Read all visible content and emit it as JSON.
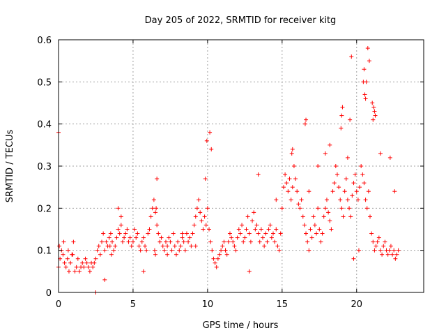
{
  "chart_data": {
    "type": "scatter",
    "title": "Day 205 of 2022, SRMTID for receiver kitg",
    "xlabel": "GPS time / hours",
    "ylabel": "SRMTID / TECUs",
    "xlim": [
      0,
      24.5
    ],
    "ylim": [
      0,
      0.6
    ],
    "xticks": [
      0,
      5,
      10,
      15,
      20
    ],
    "xtick_labels": [
      "0",
      "5",
      "10",
      "15",
      "20"
    ],
    "yticks": [
      0,
      0.1,
      0.2,
      0.3,
      0.4,
      0.5,
      0.6
    ],
    "ytick_labels": [
      "0",
      "0.1",
      "0.2",
      "0.3",
      "0.4",
      "0.5",
      "0.6"
    ],
    "grid": true,
    "marker": "+",
    "marker_color": "#ff0000",
    "series": [
      {
        "name": "SRMTID",
        "x": [
          0.0,
          0.1,
          0.2,
          0.3,
          0.4,
          0.5,
          0.6,
          0.7,
          0.8,
          0.9,
          1.0,
          1.1,
          1.2,
          1.3,
          1.4,
          1.5,
          1.6,
          1.7,
          1.8,
          1.9,
          2.0,
          2.1,
          2.2,
          2.3,
          2.4,
          2.5,
          2.6,
          2.7,
          2.8,
          2.9,
          3.0,
          3.1,
          3.2,
          3.3,
          3.4,
          3.5,
          3.6,
          3.7,
          3.8,
          3.9,
          4.0,
          4.1,
          4.2,
          4.3,
          4.4,
          4.5,
          4.6,
          4.7,
          4.8,
          4.9,
          5.0,
          5.1,
          5.2,
          5.3,
          5.4,
          5.5,
          5.6,
          5.7,
          5.8,
          5.9,
          6.0,
          6.1,
          6.2,
          6.3,
          6.4,
          6.5,
          6.6,
          6.7,
          6.8,
          6.9,
          7.0,
          7.1,
          7.2,
          7.3,
          7.4,
          7.5,
          7.6,
          7.7,
          7.8,
          7.9,
          8.0,
          8.1,
          8.2,
          8.3,
          8.4,
          8.5,
          8.6,
          8.7,
          8.8,
          8.9,
          9.0,
          9.1,
          9.2,
          9.3,
          9.4,
          9.5,
          9.6,
          9.7,
          9.8,
          9.9,
          10.0,
          10.1,
          10.2,
          10.3,
          10.4,
          10.5,
          10.6,
          10.7,
          10.8,
          10.9,
          11.0,
          11.1,
          11.2,
          11.3,
          11.4,
          11.5,
          11.6,
          11.7,
          11.8,
          11.9,
          12.0,
          12.1,
          12.2,
          12.3,
          12.4,
          12.5,
          12.6,
          12.7,
          12.8,
          12.9,
          13.0,
          13.1,
          13.2,
          13.3,
          13.4,
          13.5,
          13.6,
          13.7,
          13.8,
          13.9,
          14.0,
          14.1,
          14.2,
          14.3,
          14.4,
          14.5,
          14.6,
          14.7,
          14.8,
          14.9,
          15.0,
          15.1,
          15.2,
          15.3,
          15.4,
          15.5,
          15.6,
          15.7,
          15.8,
          15.9,
          16.0,
          16.1,
          16.2,
          16.3,
          16.4,
          16.5,
          16.6,
          16.7,
          16.8,
          16.9,
          17.0,
          17.1,
          17.2,
          17.3,
          17.4,
          17.5,
          17.6,
          17.7,
          17.8,
          17.9,
          18.0,
          18.1,
          18.2,
          18.3,
          18.4,
          18.5,
          18.6,
          18.7,
          18.8,
          18.9,
          19.0,
          19.1,
          19.2,
          19.3,
          19.4,
          19.5,
          19.6,
          19.7,
          19.8,
          19.9,
          20.0,
          20.1,
          20.2,
          20.3,
          20.4,
          20.5,
          20.6,
          20.7,
          20.8,
          20.9,
          21.0,
          21.1,
          21.2,
          21.3,
          21.4,
          21.5,
          21.6,
          21.7,
          21.8,
          21.9,
          22.0,
          22.1,
          22.2,
          22.3,
          22.4,
          22.5,
          22.6,
          22.7,
          22.8,
          0.05,
          0.35,
          0.65,
          0.95,
          3.45,
          3.55,
          6.45,
          6.5,
          6.55,
          6.6,
          9.85,
          9.95,
          10.15,
          10.25,
          15.65,
          15.7,
          16.55,
          16.6,
          18.95,
          19.0,
          19.05,
          19.55,
          19.65,
          20.45,
          20.5,
          20.55,
          20.6,
          20.65,
          20.75,
          20.85,
          21.05,
          21.1,
          21.15,
          21.2,
          21.25,
          0.0,
          2.5,
          3.1,
          4.0,
          4.2,
          5.7,
          6.8,
          7.3,
          8.3,
          9.2,
          11.2,
          12.8,
          13.4,
          14.6,
          16.8,
          17.4,
          17.9,
          18.2,
          19.4,
          19.8,
          20.15,
          21.6,
          22.25,
          22.55
        ],
        "y": [
          0.06,
          0.08,
          0.1,
          0.09,
          0.07,
          0.06,
          0.08,
          0.05,
          0.07,
          0.09,
          0.12,
          0.05,
          0.06,
          0.08,
          0.05,
          0.06,
          0.07,
          0.06,
          0.08,
          0.07,
          0.06,
          0.05,
          0.07,
          0.06,
          0.07,
          0.08,
          0.1,
          0.11,
          0.09,
          0.12,
          0.14,
          0.1,
          0.12,
          0.11,
          0.13,
          0.14,
          0.12,
          0.1,
          0.11,
          0.13,
          0.15,
          0.14,
          0.16,
          0.12,
          0.13,
          0.14,
          0.15,
          0.12,
          0.13,
          0.11,
          0.12,
          0.15,
          0.13,
          0.14,
          0.11,
          0.1,
          0.12,
          0.13,
          0.11,
          0.1,
          0.14,
          0.15,
          0.18,
          0.2,
          0.22,
          0.19,
          0.16,
          0.14,
          0.12,
          0.13,
          0.11,
          0.1,
          0.12,
          0.11,
          0.13,
          0.12,
          0.1,
          0.14,
          0.11,
          0.09,
          0.12,
          0.1,
          0.11,
          0.13,
          0.12,
          0.1,
          0.14,
          0.12,
          0.13,
          0.11,
          0.14,
          0.16,
          0.18,
          0.2,
          0.22,
          0.19,
          0.17,
          0.15,
          0.18,
          0.16,
          0.2,
          0.15,
          0.12,
          0.1,
          0.08,
          0.07,
          0.06,
          0.08,
          0.09,
          0.1,
          0.11,
          0.12,
          0.1,
          0.09,
          0.12,
          0.14,
          0.13,
          0.12,
          0.11,
          0.1,
          0.13,
          0.15,
          0.14,
          0.16,
          0.12,
          0.13,
          0.15,
          0.18,
          0.14,
          0.12,
          0.17,
          0.19,
          0.15,
          0.16,
          0.14,
          0.12,
          0.15,
          0.13,
          0.11,
          0.14,
          0.12,
          0.15,
          0.16,
          0.13,
          0.14,
          0.12,
          0.15,
          0.11,
          0.1,
          0.14,
          0.2,
          0.25,
          0.28,
          0.26,
          0.24,
          0.27,
          0.22,
          0.25,
          0.3,
          0.27,
          0.24,
          0.21,
          0.2,
          0.22,
          0.18,
          0.16,
          0.14,
          0.12,
          0.1,
          0.15,
          0.13,
          0.18,
          0.16,
          0.14,
          0.2,
          0.15,
          0.12,
          0.14,
          0.18,
          0.2,
          0.22,
          0.19,
          0.17,
          0.15,
          0.24,
          0.26,
          0.3,
          0.28,
          0.25,
          0.22,
          0.2,
          0.18,
          0.24,
          0.27,
          0.22,
          0.2,
          0.18,
          0.23,
          0.26,
          0.28,
          0.24,
          0.22,
          0.25,
          0.3,
          0.28,
          0.26,
          0.22,
          0.2,
          0.24,
          0.18,
          0.14,
          0.12,
          0.1,
          0.11,
          0.12,
          0.13,
          0.1,
          0.09,
          0.11,
          0.12,
          0.1,
          0.09,
          0.1,
          0.11,
          0.09,
          0.1,
          0.08,
          0.09,
          0.1,
          0.11,
          0.12,
          0.1,
          0.09,
          0.11,
          0.09,
          0.1,
          0.09,
          0.2,
          0.27,
          0.27,
          0.36,
          0.38,
          0.34,
          0.33,
          0.34,
          0.4,
          0.41,
          0.39,
          0.42,
          0.44,
          0.41,
          0.56,
          0.5,
          0.53,
          0.47,
          0.46,
          0.5,
          0.58,
          0.55,
          0.45,
          0.41,
          0.44,
          0.43,
          0.42,
          0.38,
          0.0,
          0.03,
          0.2,
          0.18,
          0.05,
          0.12,
          0.09,
          0.14,
          0.11,
          0.1,
          0.05,
          0.28,
          0.22,
          0.24,
          0.3,
          0.33,
          0.35,
          0.32,
          0.08,
          0.1,
          0.33,
          0.32,
          0.24
        ]
      }
    ]
  }
}
